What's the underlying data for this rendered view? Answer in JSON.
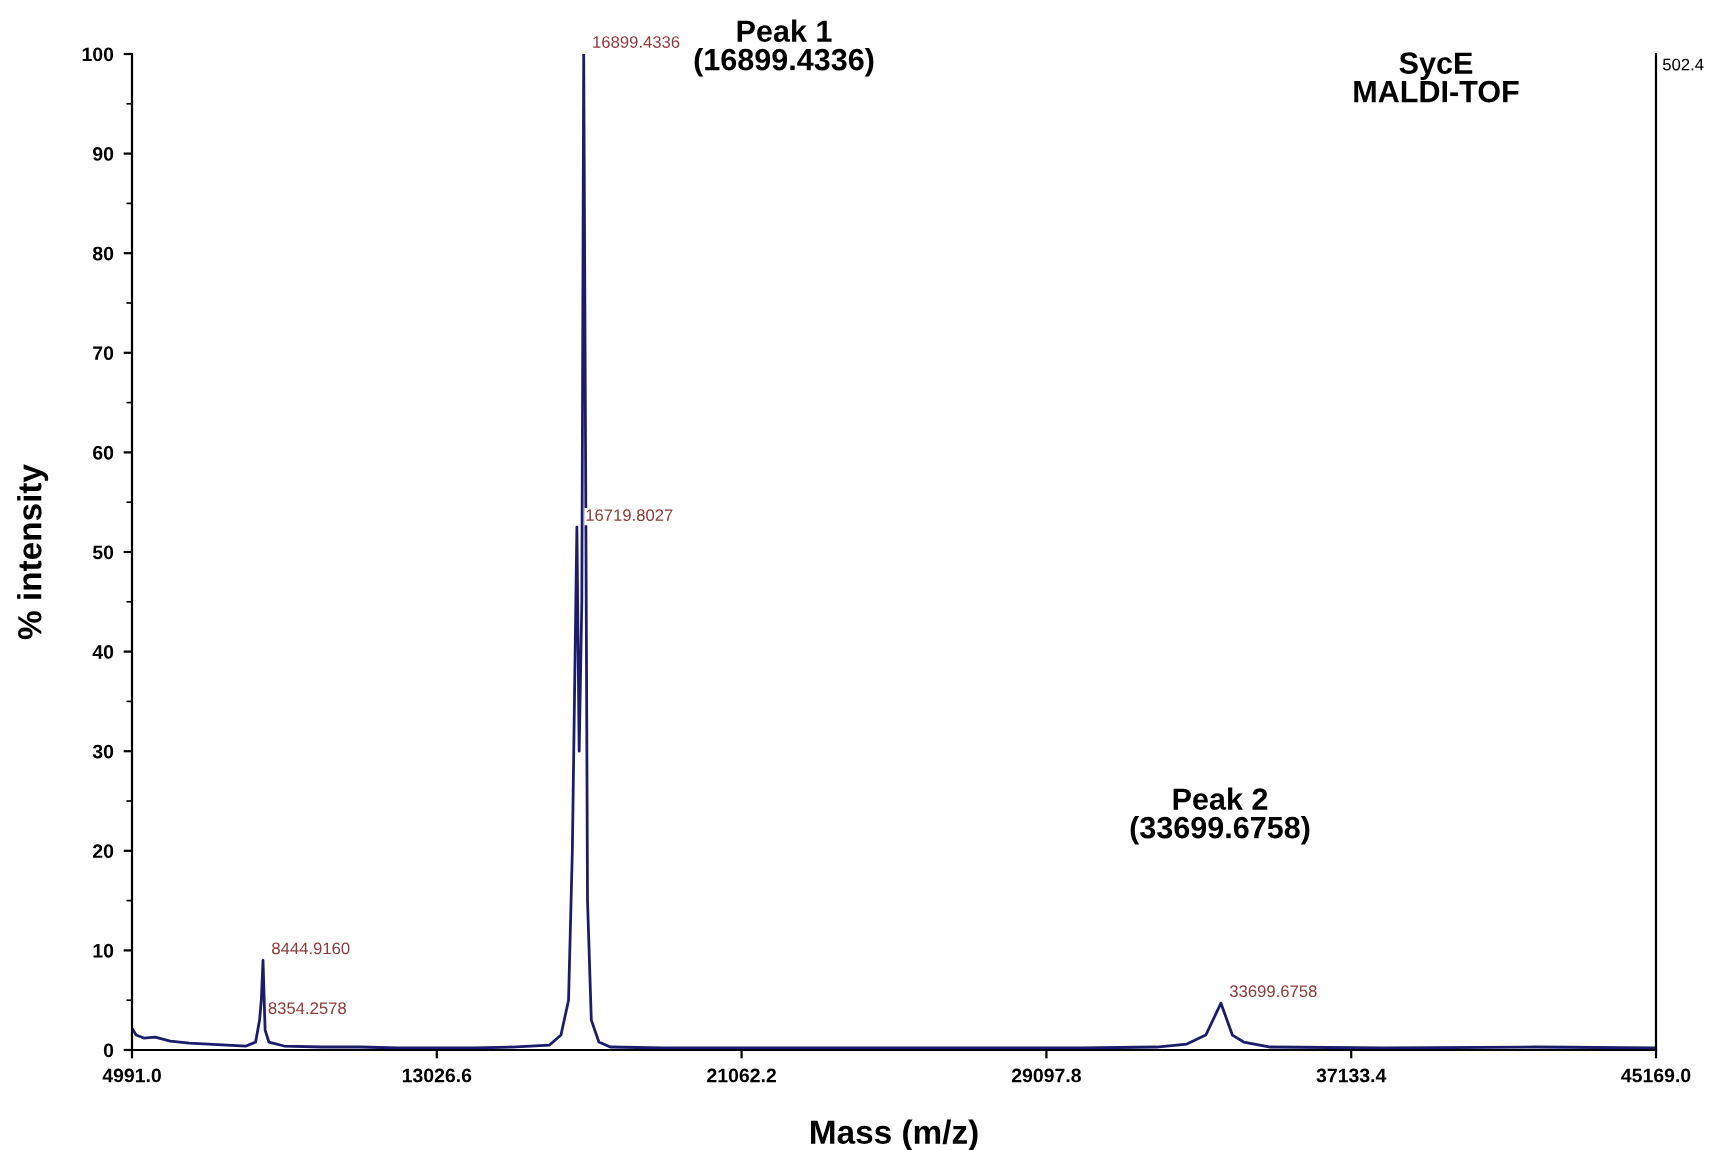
{
  "chart_data": {
    "type": "line",
    "xlabel": "Mass (m/z)",
    "ylabel": "% intensity",
    "x": [
      4991,
      5100,
      5300,
      5600,
      6000,
      6500,
      7000,
      7500,
      8000,
      8250,
      8354.2578,
      8400,
      8444.916,
      8500,
      8600,
      9000,
      10000,
      11000,
      12000,
      13000,
      14000,
      15000,
      16000,
      16300,
      16500,
      16600,
      16719.8027,
      16780,
      16850,
      16899.4336,
      16950,
      17000,
      17100,
      17300,
      17600,
      19000,
      22000,
      26000,
      30000,
      32000,
      32800,
      33300,
      33699.6758,
      34000,
      34300,
      35000,
      38000,
      42000,
      45169
    ],
    "series": [
      {
        "color": "#1c1c6b",
        "values": [
          2.2,
          1.5,
          1.2,
          1.3,
          0.9,
          0.7,
          0.6,
          0.5,
          0.4,
          0.8,
          3.0,
          5.0,
          9.0,
          2.0,
          0.8,
          0.4,
          0.3,
          0.3,
          0.2,
          0.2,
          0.2,
          0.3,
          0.5,
          1.5,
          5.0,
          20.0,
          52.5,
          30.0,
          45.0,
          100.0,
          59.0,
          15.0,
          3.0,
          0.8,
          0.3,
          0.2,
          0.2,
          0.2,
          0.2,
          0.3,
          0.6,
          1.5,
          4.7,
          1.5,
          0.8,
          0.3,
          0.2,
          0.3,
          0.2
        ]
      }
    ],
    "xlim": [
      4991.0,
      45169.0
    ],
    "xticks": [
      {
        "value": 4991.0,
        "label": "4991.0"
      },
      {
        "value": 13026.6,
        "label": "13026.6"
      },
      {
        "value": 21062.2,
        "label": "21062.2"
      },
      {
        "value": 29097.8,
        "label": "29097.8"
      },
      {
        "value": 37133.4,
        "label": "37133.4"
      },
      {
        "value": 45169.0,
        "label": "45169.0"
      }
    ],
    "ylim": [
      0,
      100
    ],
    "yticks": [
      0,
      10,
      20,
      30,
      40,
      50,
      60,
      70,
      80,
      90,
      100
    ],
    "grid": false,
    "annotations": [
      {
        "text": "8354.2578",
        "x": 8354.2578,
        "y": 3.0
      },
      {
        "text": "8444.9160",
        "x": 8444.916,
        "y": 9.0
      },
      {
        "text": "16719.8027",
        "x": 16719.8027,
        "y": 52.5
      },
      {
        "text": "16899.4336",
        "x": 16899.4336,
        "y": 100.0
      },
      {
        "text": "33699.6758",
        "x": 33699.6758,
        "y": 4.7
      },
      "Peak 1\n(16899.4336)",
      "Peak 2\n(33699.6758)",
      "SycE\nMALDI-TOF",
      "502.4"
    ]
  }
}
